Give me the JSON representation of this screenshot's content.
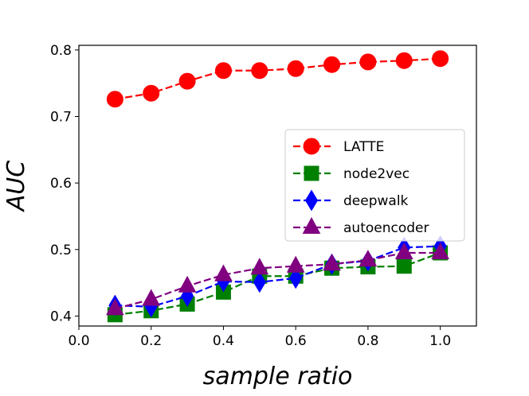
{
  "chart_data": {
    "type": "line",
    "title": "",
    "xlabel": "sample ratio",
    "ylabel": "AUC",
    "xlim": [
      0.0,
      1.1
    ],
    "ylim": [
      0.385,
      0.807
    ],
    "xticks": [
      0.0,
      0.2,
      0.4,
      0.6,
      0.8,
      1.0
    ],
    "xtick_labels": [
      "0.0",
      "0.2",
      "0.4",
      "0.6",
      "0.8",
      "1.0"
    ],
    "yticks": [
      0.4,
      0.5,
      0.6,
      0.7,
      0.8
    ],
    "ytick_labels": [
      "0.4",
      "0.5",
      "0.6",
      "0.7",
      "0.8"
    ],
    "grid": false,
    "legend_position": "center-right",
    "x": [
      0.1,
      0.2,
      0.3,
      0.4,
      0.5,
      0.6,
      0.7,
      0.8,
      0.9,
      1.0
    ],
    "series": [
      {
        "name": "LATTE",
        "color": "#ff0000",
        "marker": "circle",
        "values": [
          0.726,
          0.735,
          0.753,
          0.769,
          0.769,
          0.772,
          0.778,
          0.782,
          0.784,
          0.787
        ]
      },
      {
        "name": "node2vec",
        "color": "#008000",
        "marker": "square",
        "values": [
          0.402,
          0.408,
          0.418,
          0.436,
          0.46,
          0.46,
          0.472,
          0.474,
          0.475,
          0.495
        ]
      },
      {
        "name": "deepwalk",
        "color": "#0000ff",
        "marker": "diamond",
        "values": [
          0.416,
          0.414,
          0.43,
          0.452,
          0.451,
          0.457,
          0.478,
          0.483,
          0.503,
          0.505
        ]
      },
      {
        "name": "autoencoder",
        "color": "#800080",
        "marker": "triangle",
        "values": [
          0.411,
          0.425,
          0.445,
          0.462,
          0.472,
          0.475,
          0.478,
          0.484,
          0.495,
          0.495
        ]
      }
    ]
  }
}
